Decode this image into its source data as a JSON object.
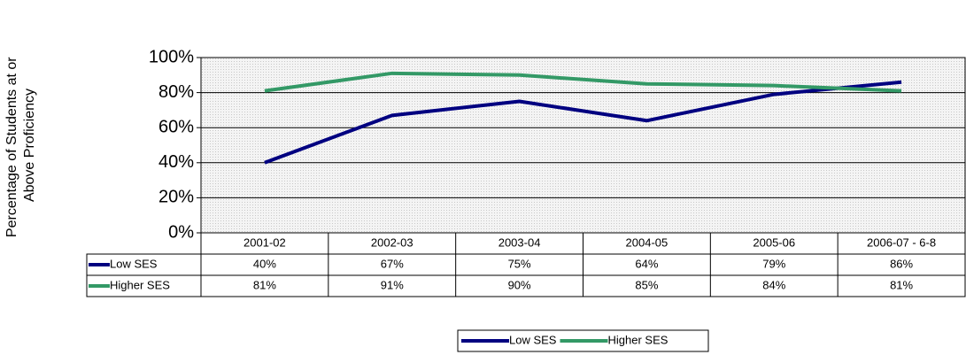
{
  "chart_data": {
    "type": "line",
    "ylabel": [
      "Percentage of Students at or",
      "Above Proficiency"
    ],
    "categories": [
      "2001-02",
      "2002-03",
      "2003-04",
      "2004-05",
      "2005-06",
      "2006-07 - 6-8"
    ],
    "series": [
      {
        "name": "Low SES",
        "color": "#000080",
        "values": [
          40,
          67,
          75,
          64,
          79,
          86
        ],
        "value_labels": [
          "40%",
          "67%",
          "75%",
          "64%",
          "79%",
          "86%"
        ]
      },
      {
        "name": "Higher SES",
        "color": "#339966",
        "values": [
          81,
          91,
          90,
          85,
          84,
          81
        ],
        "value_labels": [
          "81%",
          "91%",
          "90%",
          "85%",
          "84%",
          "81%"
        ]
      }
    ],
    "ylim": [
      0,
      100
    ],
    "yticks": [
      {
        "value": 0,
        "label": "0%"
      },
      {
        "value": 20,
        "label": "20%"
      },
      {
        "value": 40,
        "label": "40%"
      },
      {
        "value": 60,
        "label": "60%"
      },
      {
        "value": 80,
        "label": "80%"
      },
      {
        "value": 100,
        "label": "100%"
      }
    ],
    "grid": true,
    "legend": "bottom"
  }
}
